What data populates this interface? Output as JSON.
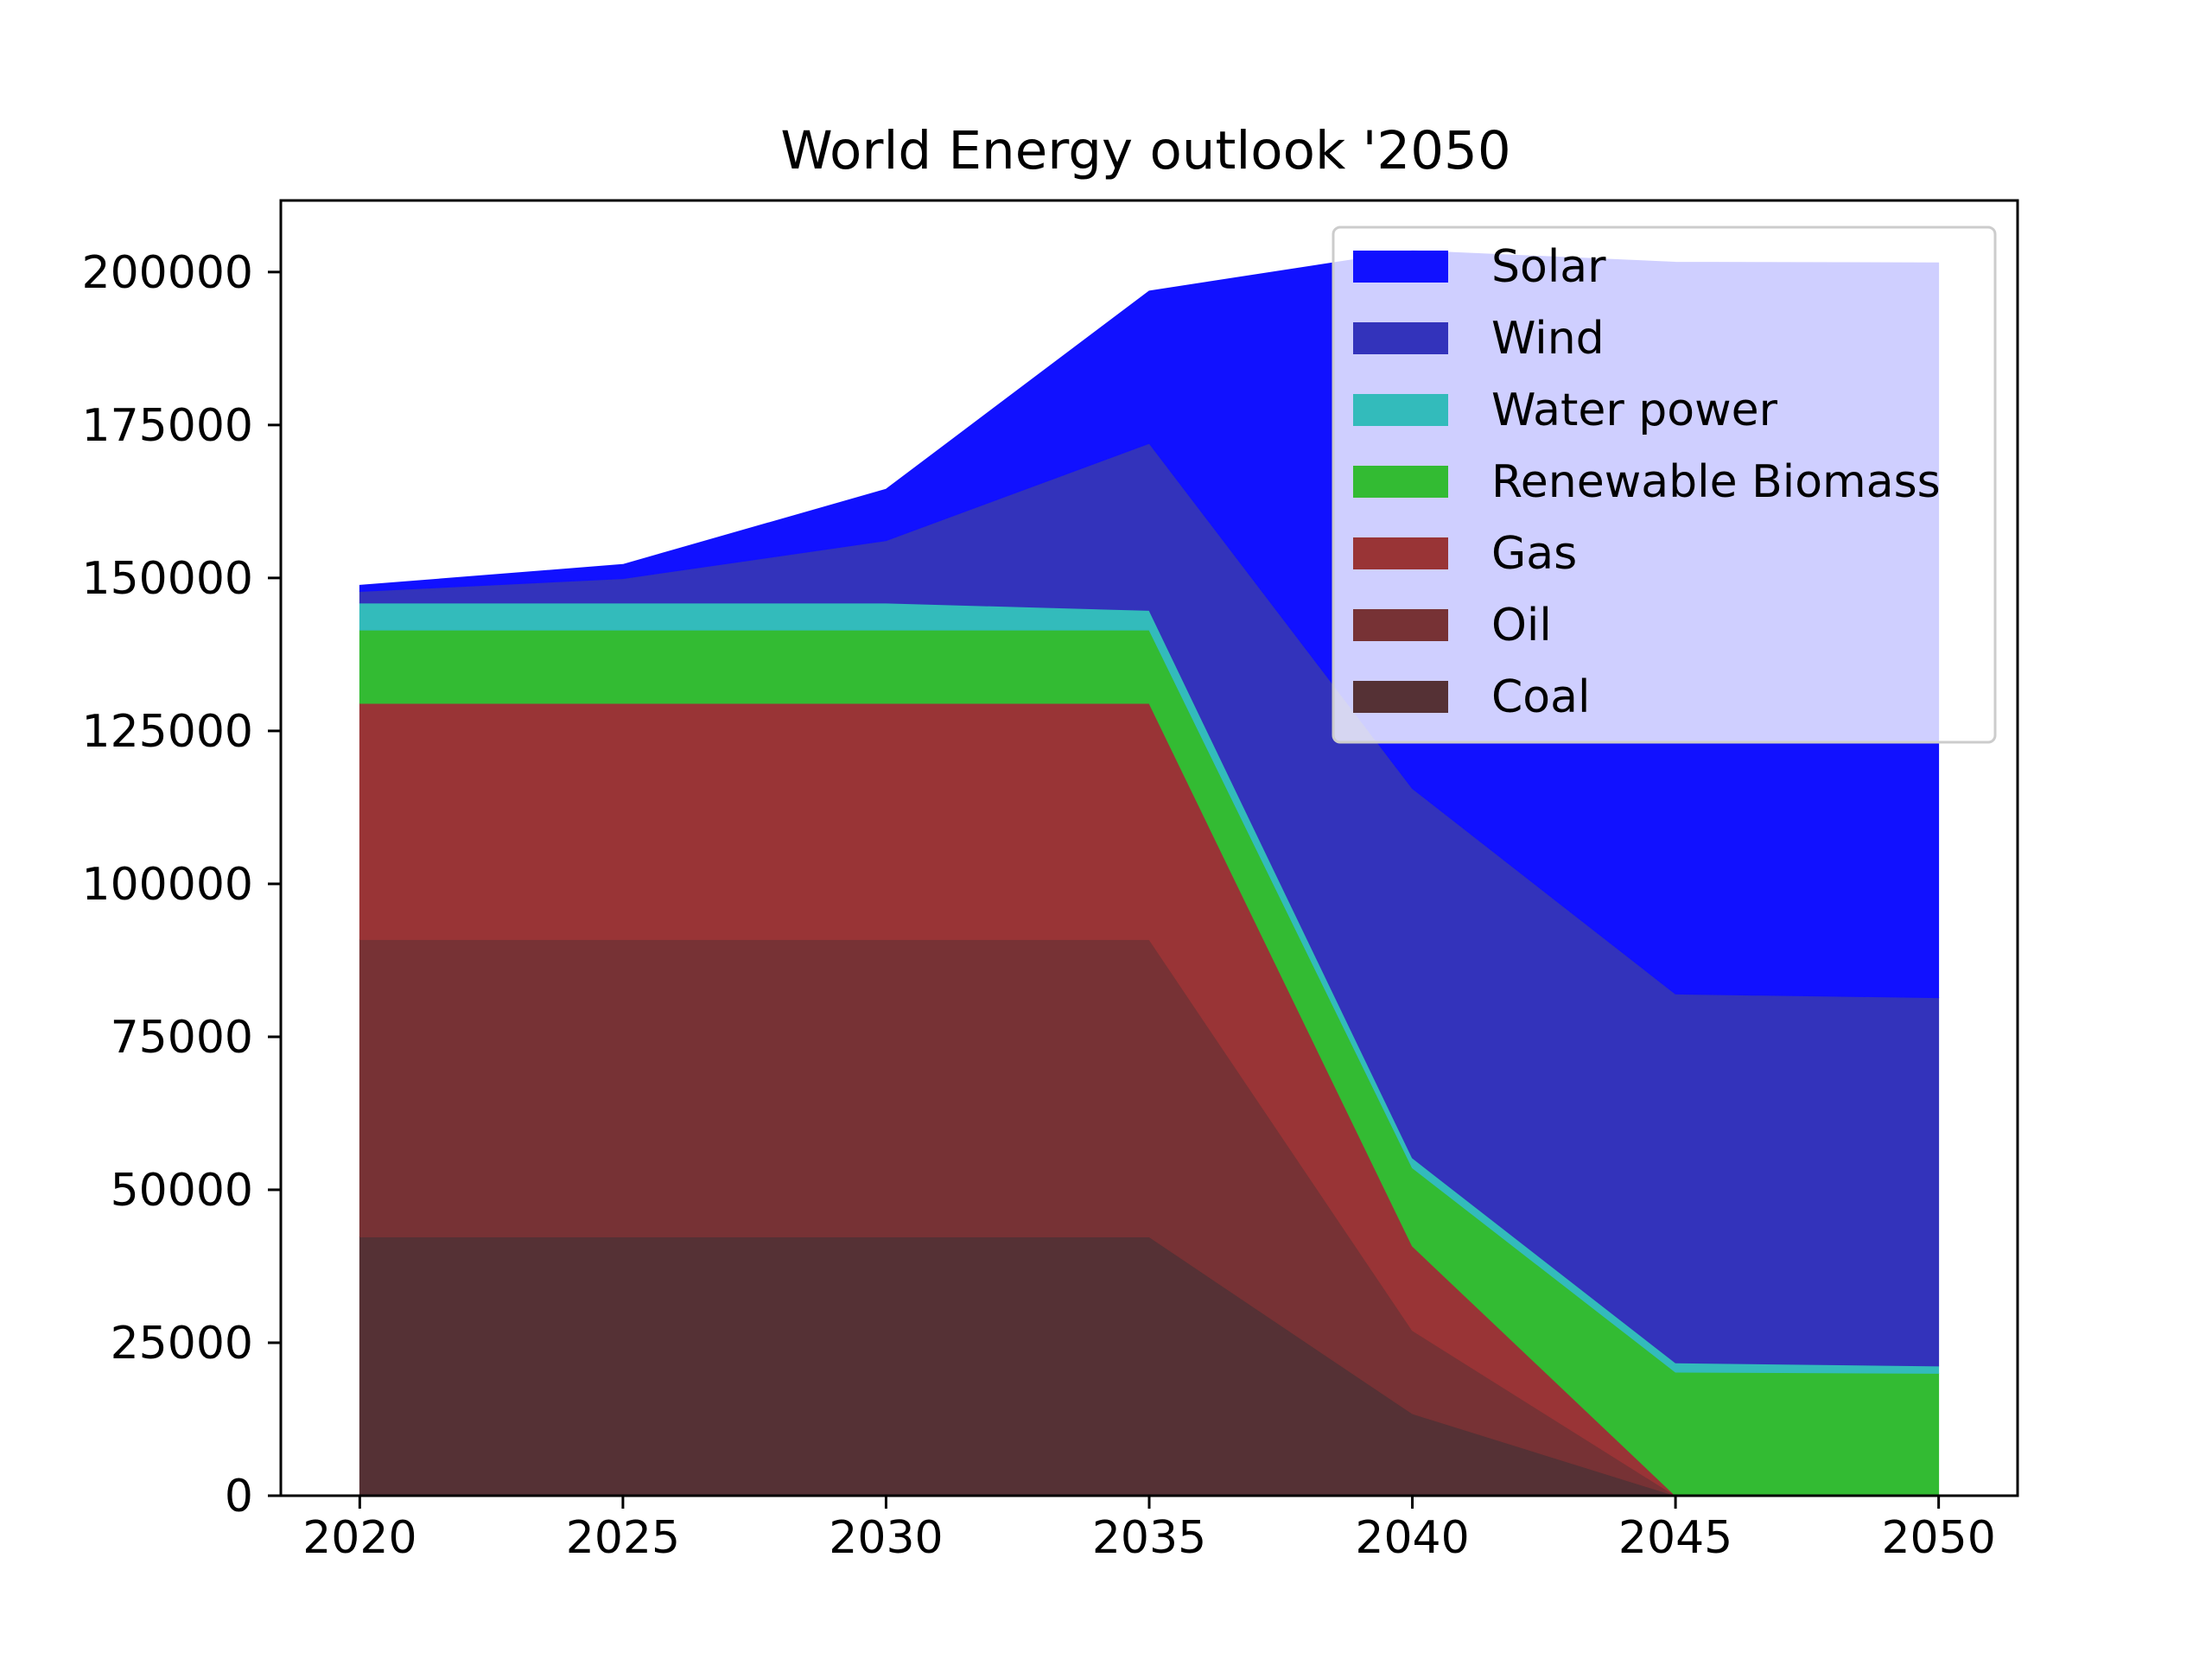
{
  "chart_data": {
    "type": "area",
    "stacked": true,
    "title": "World Energy outlook '2050",
    "xlabel": "",
    "ylabel": "",
    "x": [
      2020,
      2025,
      2030,
      2035,
      2040,
      2045,
      2050
    ],
    "xticks": [
      "2020",
      "2025",
      "2030",
      "2035",
      "2040",
      "2045",
      "2050"
    ],
    "xlim": [
      2018.5,
      2051.5
    ],
    "ylim": [
      0,
      211700
    ],
    "yticks": [
      0,
      25000,
      50000,
      75000,
      100000,
      125000,
      150000,
      175000,
      200000
    ],
    "ytick_labels": [
      "0",
      "25000",
      "50000",
      "75000",
      "100000",
      "125000",
      "150000",
      "175000",
      "200000"
    ],
    "grid": false,
    "legend_placement": "upper right",
    "series": [
      {
        "name": "Coal",
        "color": "#553135",
        "values": [
          42300,
          42300,
          42300,
          42300,
          13400,
          0,
          0
        ]
      },
      {
        "name": "Oil",
        "color": "#773235",
        "values": [
          48600,
          48600,
          48600,
          48600,
          13600,
          0,
          0
        ]
      },
      {
        "name": "Gas",
        "color": "#993436",
        "values": [
          38600,
          38600,
          38600,
          38600,
          13800,
          0,
          0
        ]
      },
      {
        "name": "Renewable Biomass",
        "color": "#33bb33",
        "values": [
          12000,
          12000,
          12000,
          12000,
          12800,
          20200,
          20000
        ]
      },
      {
        "name": "Water power",
        "color": "#33bbbb",
        "values": [
          4400,
          4400,
          4400,
          3200,
          1600,
          1500,
          1200
        ]
      },
      {
        "name": "Wind",
        "color": "#3333bb",
        "values": [
          1900,
          4000,
          10200,
          27300,
          60400,
          60300,
          60200
        ]
      },
      {
        "name": "Solar",
        "color": "#1111ff",
        "values": [
          1000,
          2300,
          8400,
          24900,
          87900,
          119600,
          120100
        ]
      }
    ]
  }
}
